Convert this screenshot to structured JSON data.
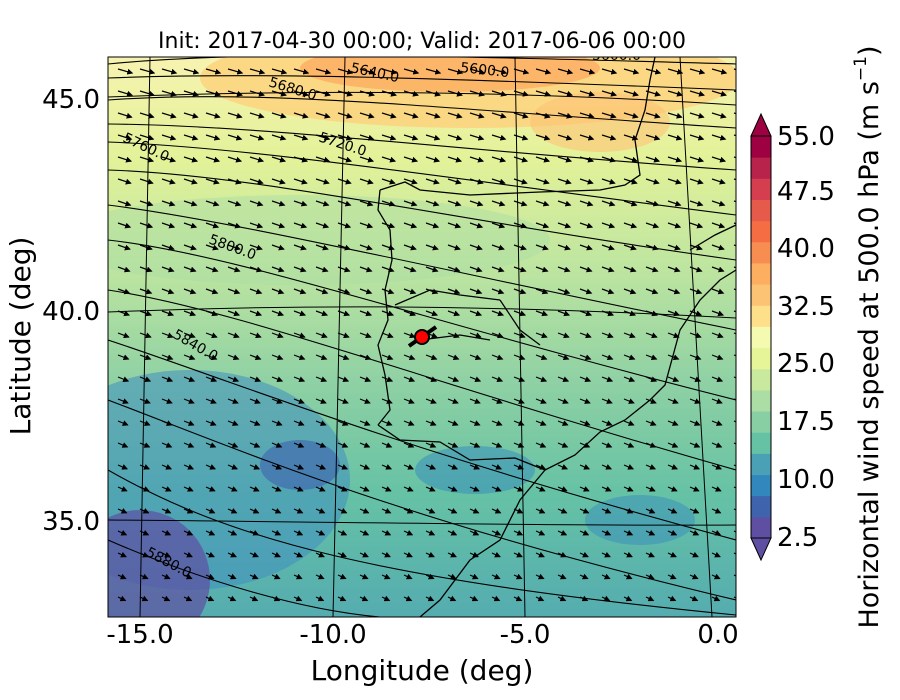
{
  "title": "Init: 2017-04-30 00:00; Valid: 2017-06-06 00:00",
  "x_axis": {
    "label": "Longitude (deg)",
    "range": [
      -15.8,
      0.0
    ],
    "ticks": [
      -15.0,
      -10.0,
      -5.0,
      0.0
    ],
    "tick_labels": [
      "-15.0",
      "-10.0",
      "-5.0",
      "0.0"
    ]
  },
  "y_axis": {
    "label": "Latitude (deg)",
    "range": [
      32.8,
      46.0
    ],
    "ticks": [
      35.0,
      40.0,
      45.0
    ],
    "tick_labels": [
      "35.0",
      "40.0",
      "45.0"
    ]
  },
  "colorbar": {
    "label_main": "Horizontal wind speed at 500.0 hPa (m s",
    "label_sup": "−1",
    "label_close": ")",
    "range": [
      2.5,
      55.0
    ],
    "step": 2.5,
    "ticks": [
      2.5,
      10.0,
      17.5,
      25.0,
      32.5,
      40.0,
      47.5,
      55.0
    ],
    "tick_labels": [
      "2.5",
      "10.0",
      "17.5",
      "25.0",
      "32.5",
      "40.0",
      "47.5",
      "55.0"
    ],
    "colors": [
      "#5e4fa2",
      "#3f63ad",
      "#3288bd",
      "#4aa0b5",
      "#66c2a5",
      "#88cfa4",
      "#abdda4",
      "#c9e99e",
      "#e6f598",
      "#f4fab0",
      "#fee08b",
      "#fdc374",
      "#fdae61",
      "#f88d52",
      "#f46d43",
      "#e55a4a",
      "#d53e4f",
      "#b8234b",
      "#9e0142"
    ]
  },
  "contours": [
    {
      "label": "5600.0",
      "lat": 46.0
    },
    {
      "label": "5640.0",
      "lat": 45.8
    },
    {
      "label": "5680.0",
      "lat": 45.3
    },
    {
      "label": "5720.0",
      "lat": 44.2
    },
    {
      "label": "5760.0",
      "lat": 44.1
    },
    {
      "label": "5800.0",
      "lat": 41.5
    },
    {
      "label": "5840.0",
      "lat": 39.4
    },
    {
      "label": "5880.0",
      "lat": 33.8
    },
    {
      "label": "5600.0",
      "lat": 46.0
    }
  ],
  "marker": {
    "lon": -7.6,
    "lat": 39.3,
    "color": "#ff0000"
  },
  "wind_direction": "northwesterly"
}
